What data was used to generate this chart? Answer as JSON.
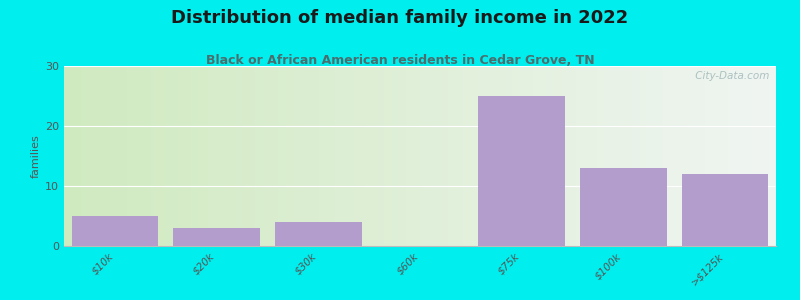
{
  "title": "Distribution of median family income in 2022",
  "subtitle": "Black or African American residents in Cedar Grove, TN",
  "categories": [
    "$10k",
    "$20k",
    "$30k",
    "$60k",
    "$75k",
    "$100k",
    ">$125k"
  ],
  "values": [
    5,
    3,
    4,
    0,
    25,
    13,
    12
  ],
  "bar_color": "#b39dcc",
  "bg_color": "#00eeee",
  "plot_bg_left_top": "#d0eac0",
  "plot_bg_left_bottom": "#e8f5e0",
  "plot_bg_right": "#f0f5f2",
  "ylabel": "families",
  "ylim": [
    0,
    30
  ],
  "yticks": [
    0,
    10,
    20,
    30
  ],
  "title_fontsize": 13,
  "subtitle_fontsize": 9,
  "title_color": "#1a1a1a",
  "subtitle_color": "#4a6e6e",
  "watermark": " City-Data.com",
  "watermark_color": "#a0b8b8"
}
